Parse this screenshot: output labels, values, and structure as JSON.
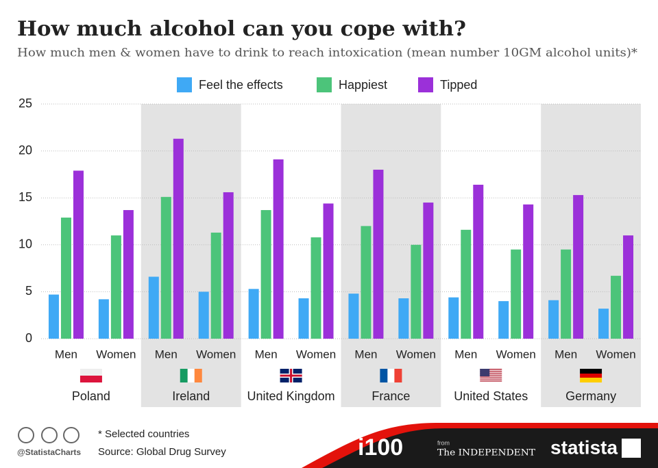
{
  "chart_data": {
    "type": "bar",
    "title": "How much alcohol can you cope with?",
    "subtitle": "How much men & women have to drink to reach intoxication (mean number 10GM alcohol units)*",
    "categories": [
      "Men",
      "Women",
      "Men",
      "Women",
      "Men",
      "Women",
      "Men",
      "Women",
      "Men",
      "Women",
      "Men",
      "Women"
    ],
    "countries": [
      "Poland",
      "Ireland",
      "United Kingdom",
      "France",
      "United States",
      "Germany"
    ],
    "series": [
      {
        "name": "Feel the effects",
        "color": "#3fa9f5",
        "values": [
          4.7,
          4.2,
          6.6,
          5.0,
          5.3,
          4.3,
          4.8,
          4.3,
          4.4,
          4.0,
          4.1,
          3.2
        ]
      },
      {
        "name": "Happiest",
        "color": "#4cc47a",
        "values": [
          12.9,
          11.0,
          15.1,
          11.3,
          13.7,
          10.8,
          12.0,
          10.0,
          11.6,
          9.5,
          9.5,
          6.7
        ]
      },
      {
        "name": "Tipped",
        "color": "#9b30d9",
        "values": [
          17.9,
          13.7,
          21.3,
          15.6,
          19.1,
          14.4,
          18.0,
          14.5,
          16.4,
          14.3,
          15.3,
          11.0
        ]
      }
    ],
    "ylim": [
      0,
      25
    ],
    "yticks": [
      0,
      5,
      10,
      15,
      20,
      25
    ],
    "grid": true,
    "legend": "top"
  },
  "footer": {
    "note": "* Selected countries",
    "source": "Source: Global Drug Survey",
    "handle": "@StatistaCharts",
    "logo_i100": "i100",
    "from": "from",
    "logo_independent": "The INDEPENDENT",
    "logo_statista": "statista"
  }
}
